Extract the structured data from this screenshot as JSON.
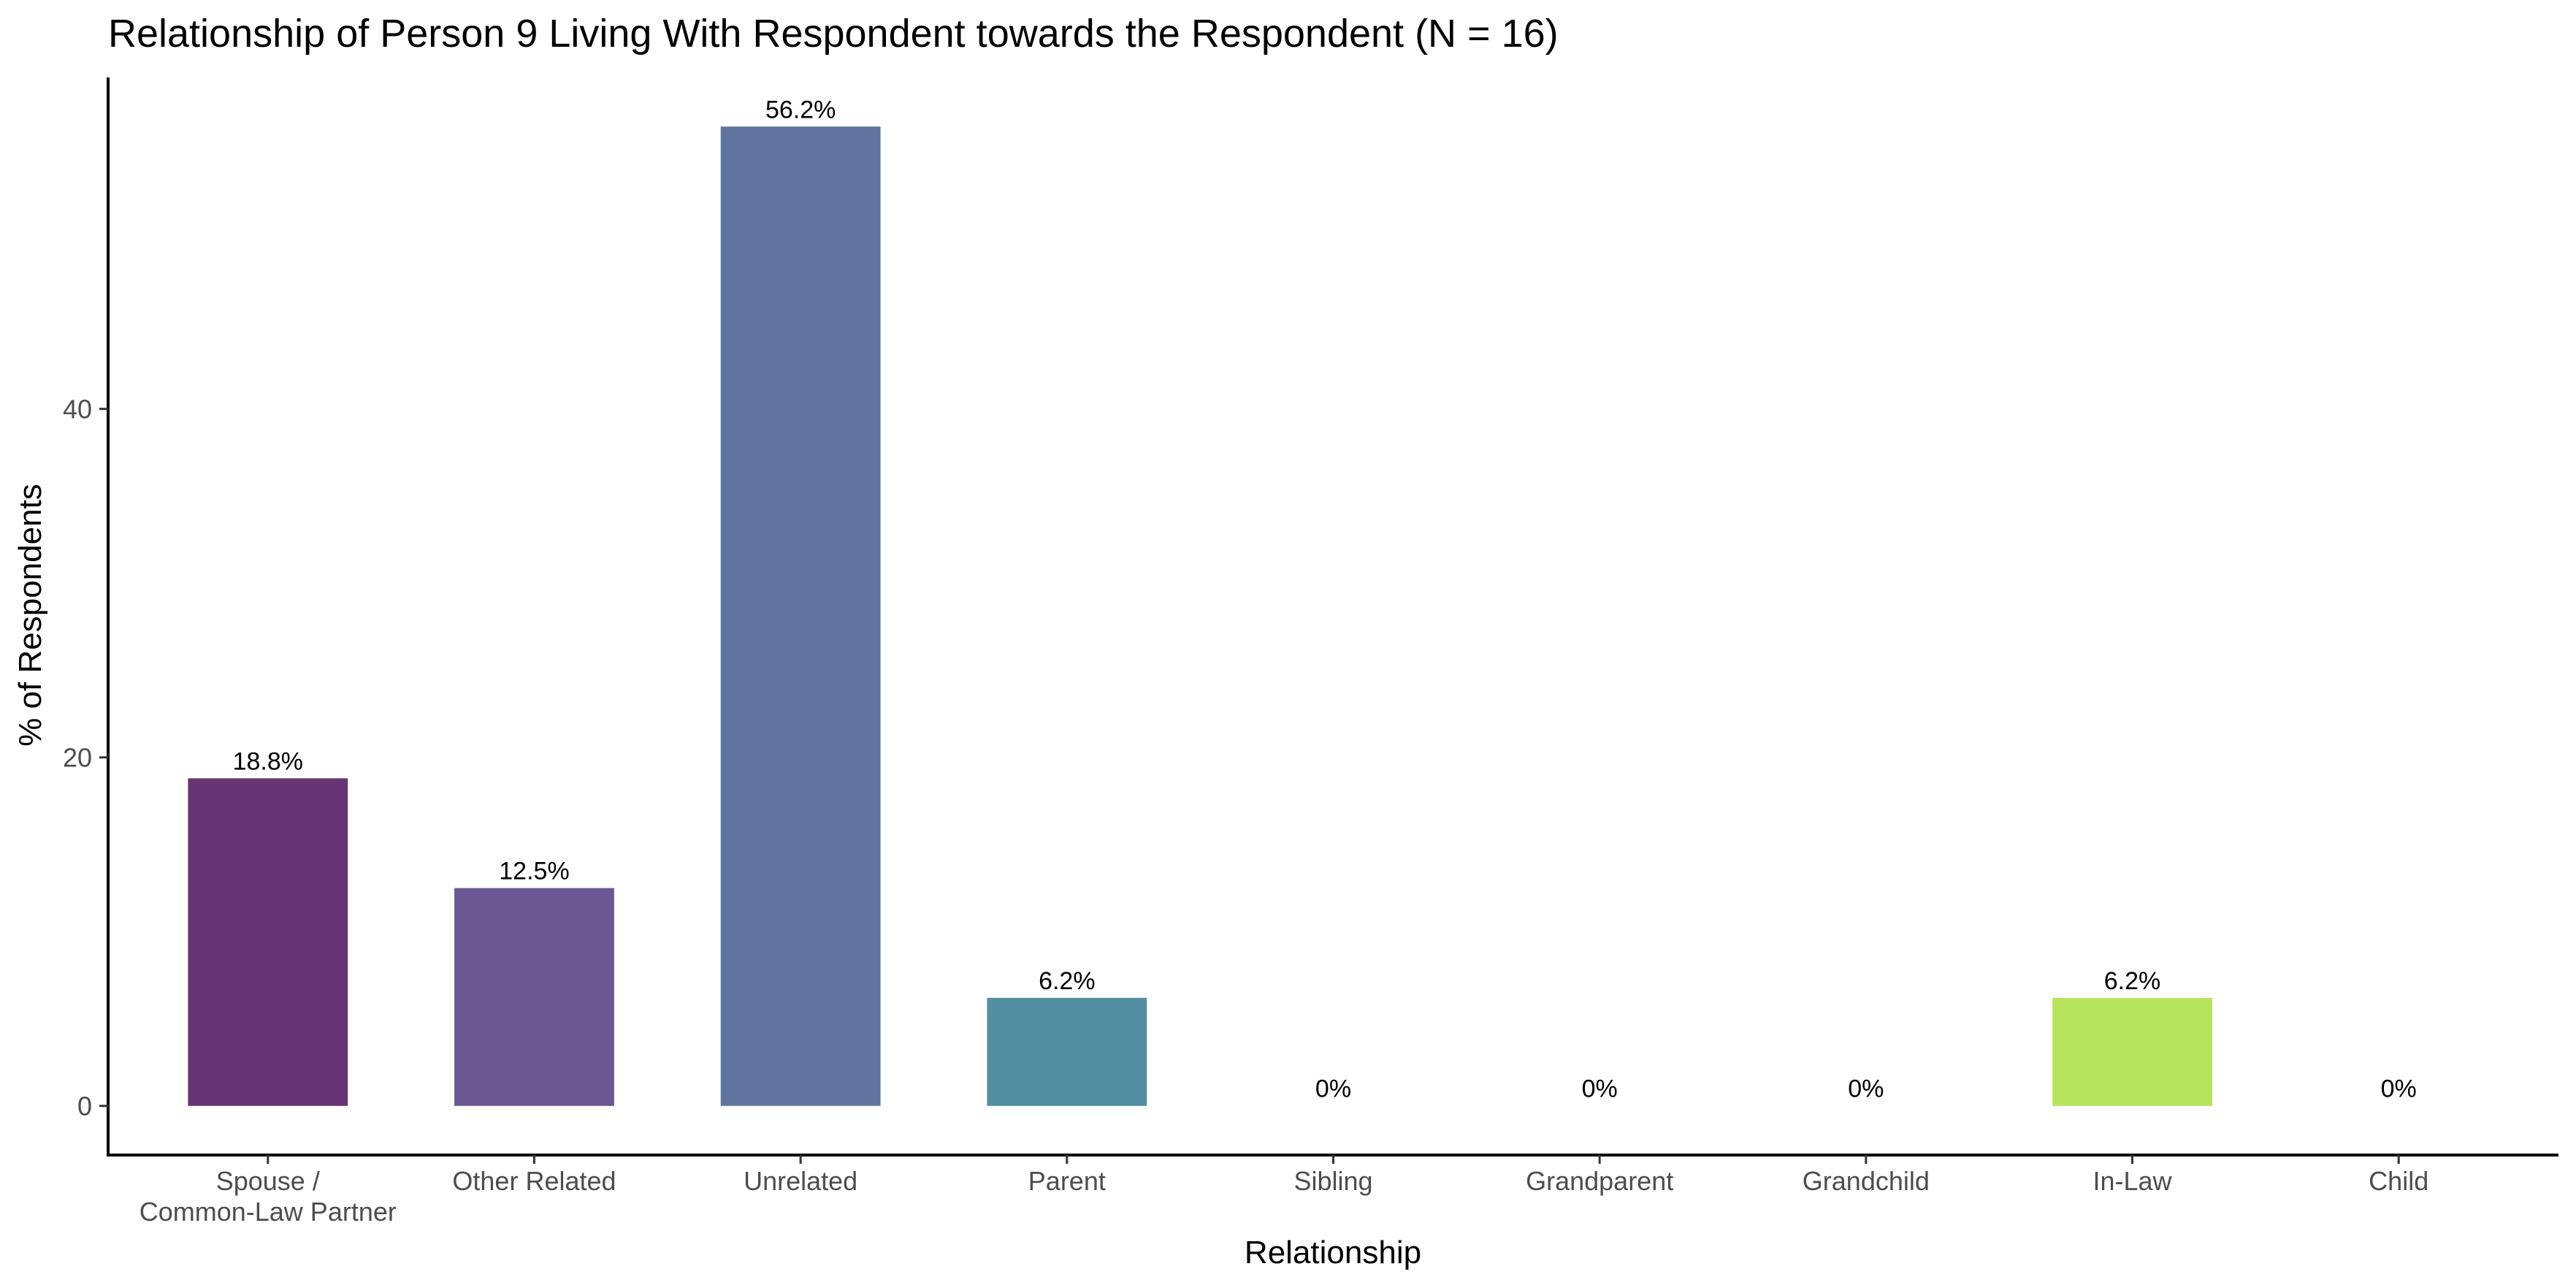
{
  "chart_data": {
    "type": "bar",
    "title": "Relationship of Person 9 Living With Respondent towards the Respondent (N = 16)",
    "xlabel": "Relationship",
    "ylabel": "% of Respondents",
    "categories": [
      [
        "Spouse /",
        "Common-Law Partner"
      ],
      [
        "Other Related"
      ],
      [
        "Unrelated"
      ],
      [
        "Parent"
      ],
      [
        "Sibling"
      ],
      [
        "Grandparent"
      ],
      [
        "Grandchild"
      ],
      [
        "In-Law"
      ],
      [
        "Child"
      ]
    ],
    "values": [
      18.8,
      12.5,
      56.2,
      6.2,
      0,
      0,
      0,
      6.2,
      0
    ],
    "value_labels": [
      "18.8%",
      "12.5%",
      "56.2%",
      "6.2%",
      "0%",
      "0%",
      "0%",
      "6.2%",
      "0%"
    ],
    "colors": [
      "#673473",
      "#6a5791",
      "#61749f",
      "#548ea2",
      "#538ea1",
      "#5ca59f",
      "#78bd8e",
      "#b8e35c",
      "#f2e52c"
    ],
    "yticks": [
      0,
      20,
      40
    ],
    "ylim": [
      -2.82,
      59.02
    ],
    "grid": false,
    "legend": "none"
  }
}
